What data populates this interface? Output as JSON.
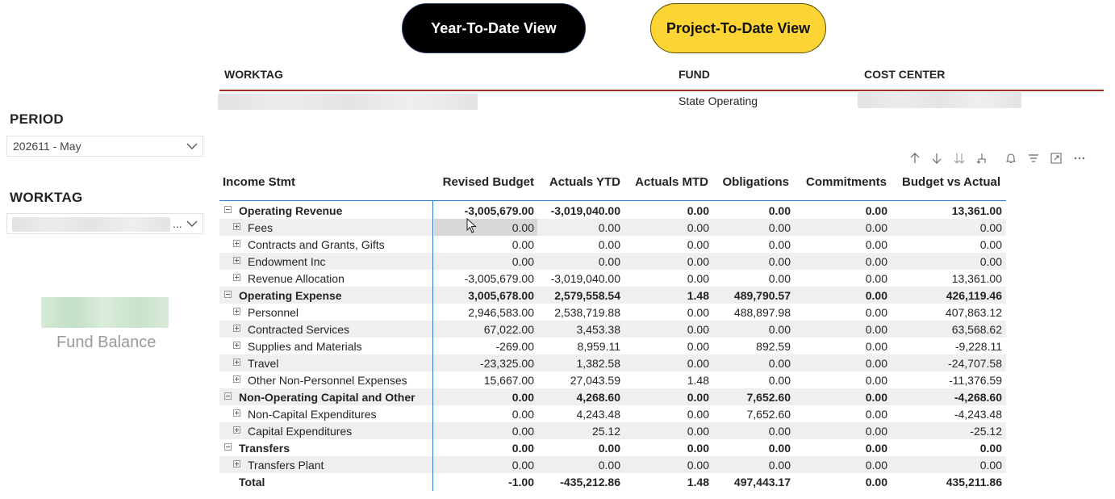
{
  "buttons": {
    "ytd_label": "Year-To-Date View",
    "ptd_label": "Project-To-Date View"
  },
  "header": {
    "worktag_label": "WORKTAG",
    "fund_label": "FUND",
    "cost_center_label": "COST CENTER",
    "fund_value": "State Operating"
  },
  "slicers": {
    "period_title": "PERIOD",
    "period_value": "202611 - May",
    "worktag_title": "WORKTAG",
    "worktag_ellipsis": "..."
  },
  "fund_balance_label": "Fund Balance",
  "toolbar": [
    "arrow-up-icon",
    "arrow-down-icon",
    "double-arrow-down-icon",
    "expand-hierarchy-icon",
    "bell-icon",
    "filter-icon",
    "focus-mode-icon",
    "more-options-icon"
  ],
  "table": {
    "columns": [
      "Income Stmt",
      "Revised Budget",
      "Actuals YTD",
      "Actuals MTD",
      "Obligations",
      "Commitments",
      "Budget vs Actual"
    ],
    "rows": [
      {
        "type": "cat",
        "label": "Operating Revenue",
        "values": [
          "-3,005,679.00",
          "-3,019,040.00",
          "0.00",
          "0.00",
          "0.00",
          "13,361.00"
        ]
      },
      {
        "type": "sub",
        "label": "Fees",
        "values": [
          "0.00",
          "0.00",
          "0.00",
          "0.00",
          "0.00",
          "0.00"
        ]
      },
      {
        "type": "sub",
        "label": "Contracts and Grants, Gifts",
        "values": [
          "0.00",
          "0.00",
          "0.00",
          "0.00",
          "0.00",
          "0.00"
        ]
      },
      {
        "type": "sub",
        "label": "Endowment Inc",
        "values": [
          "0.00",
          "0.00",
          "0.00",
          "0.00",
          "0.00",
          "0.00"
        ]
      },
      {
        "type": "sub",
        "label": "Revenue Allocation",
        "values": [
          "-3,005,679.00",
          "-3,019,040.00",
          "0.00",
          "0.00",
          "0.00",
          "13,361.00"
        ]
      },
      {
        "type": "cat",
        "label": "Operating Expense",
        "values": [
          "3,005,678.00",
          "2,579,558.54",
          "1.48",
          "489,790.57",
          "0.00",
          "426,119.46"
        ]
      },
      {
        "type": "sub",
        "label": "Personnel",
        "values": [
          "2,946,583.00",
          "2,538,719.88",
          "0.00",
          "488,897.98",
          "0.00",
          "407,863.12"
        ]
      },
      {
        "type": "sub",
        "label": "Contracted Services",
        "values": [
          "67,022.00",
          "3,453.38",
          "0.00",
          "0.00",
          "0.00",
          "63,568.62"
        ]
      },
      {
        "type": "sub",
        "label": "Supplies and Materials",
        "values": [
          "-269.00",
          "8,959.11",
          "0.00",
          "892.59",
          "0.00",
          "-9,228.11"
        ]
      },
      {
        "type": "sub",
        "label": "Travel",
        "values": [
          "-23,325.00",
          "1,382.58",
          "0.00",
          "0.00",
          "0.00",
          "-24,707.58"
        ]
      },
      {
        "type": "sub",
        "label": "Other Non-Personnel Expenses",
        "values": [
          "15,667.00",
          "27,043.59",
          "1.48",
          "0.00",
          "0.00",
          "-11,376.59"
        ]
      },
      {
        "type": "cat",
        "label": "Non-Operating Capital and Other",
        "values": [
          "0.00",
          "4,268.60",
          "0.00",
          "7,652.60",
          "0.00",
          "-4,268.60"
        ]
      },
      {
        "type": "sub",
        "label": "Non-Capital Expenditures",
        "values": [
          "0.00",
          "4,243.48",
          "0.00",
          "7,652.60",
          "0.00",
          "-4,243.48"
        ]
      },
      {
        "type": "sub",
        "label": "Capital Expenditures",
        "values": [
          "0.00",
          "25.12",
          "0.00",
          "0.00",
          "0.00",
          "-25.12"
        ]
      },
      {
        "type": "cat",
        "label": "Transfers",
        "values": [
          "0.00",
          "0.00",
          "0.00",
          "0.00",
          "0.00",
          "0.00"
        ]
      },
      {
        "type": "sub",
        "label": "Transfers Plant",
        "values": [
          "0.00",
          "0.00",
          "0.00",
          "0.00",
          "0.00",
          "0.00"
        ]
      },
      {
        "type": "total",
        "label": "Total",
        "values": [
          "-1.00",
          "-435,212.86",
          "1.48",
          "497,443.17",
          "0.00",
          "435,211.86"
        ]
      }
    ]
  }
}
